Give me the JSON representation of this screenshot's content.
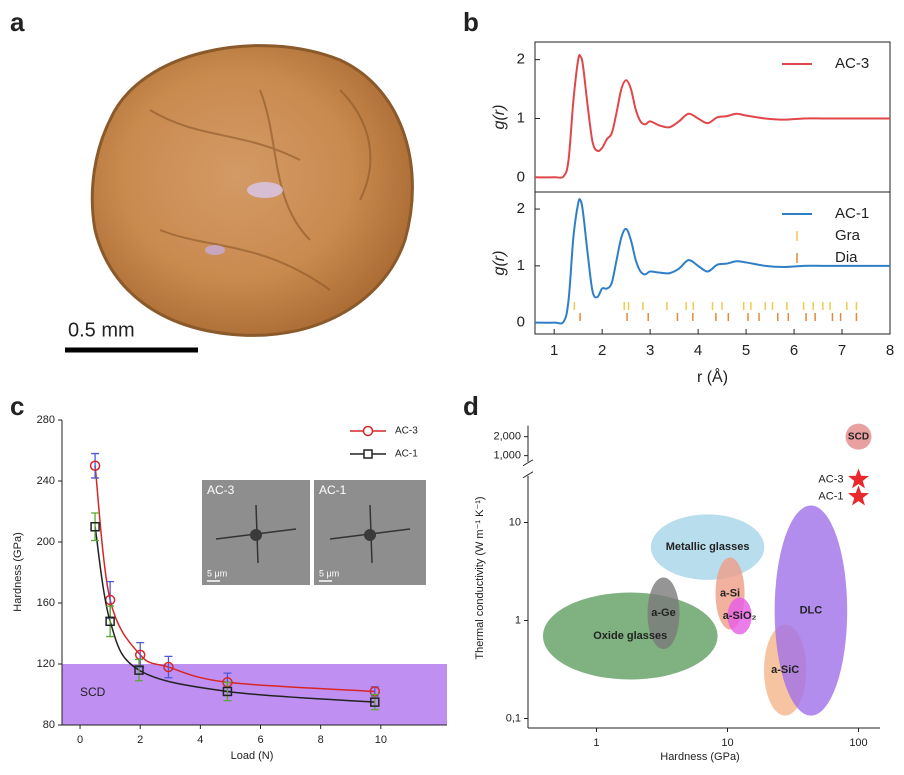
{
  "panel_labels": [
    "a",
    "b",
    "c",
    "d"
  ],
  "photo": {
    "scale_bar": "0.5 mm"
  },
  "chart_data": [
    {
      "type": "line",
      "ylabel": "g(r)",
      "xlim": [
        0.6,
        8
      ],
      "ylim": [
        -0.25,
        2.3
      ],
      "yticks": [
        0,
        1,
        2
      ],
      "x": [
        0.6,
        1.0,
        1.2,
        1.3,
        1.4,
        1.5,
        1.55,
        1.6,
        1.7,
        1.8,
        1.9,
        2.0,
        2.1,
        2.2,
        2.3,
        2.4,
        2.5,
        2.6,
        2.7,
        2.8,
        2.9,
        3.0,
        3.2,
        3.4,
        3.6,
        3.8,
        4.0,
        4.2,
        4.4,
        4.6,
        4.8,
        5.0,
        5.4,
        5.8,
        6.2,
        6.6,
        7.0,
        7.5,
        8.0
      ],
      "series": [
        {
          "name": "AC-3",
          "color": "#e0464a",
          "values": [
            0,
            0,
            0.02,
            0.3,
            1.3,
            2.0,
            2.05,
            1.9,
            1.2,
            0.6,
            0.45,
            0.5,
            0.65,
            0.75,
            1.1,
            1.5,
            1.65,
            1.5,
            1.15,
            0.95,
            0.9,
            0.95,
            0.88,
            0.85,
            0.95,
            1.08,
            1.0,
            0.92,
            1.02,
            1.04,
            1.08,
            1.05,
            1.0,
            0.98,
            1.0,
            1.0,
            1.0,
            1.0,
            1.0
          ]
        }
      ]
    },
    {
      "type": "line",
      "ylabel": "g(r)",
      "xlabel": "r (Å)",
      "xlim": [
        0.6,
        8
      ],
      "ylim": [
        -0.2,
        2.3
      ],
      "yticks": [
        0,
        1,
        2
      ],
      "xticks": [
        1,
        2,
        3,
        4,
        5,
        6,
        7,
        8
      ],
      "x": [
        0.6,
        1.0,
        1.2,
        1.3,
        1.4,
        1.5,
        1.55,
        1.6,
        1.7,
        1.8,
        1.9,
        2.0,
        2.1,
        2.2,
        2.3,
        2.4,
        2.5,
        2.6,
        2.7,
        2.8,
        2.9,
        3.0,
        3.2,
        3.4,
        3.6,
        3.8,
        4.0,
        4.2,
        4.4,
        4.6,
        4.8,
        5.0,
        5.4,
        5.8,
        6.2,
        6.6,
        7.0,
        7.5,
        8.0
      ],
      "series": [
        {
          "name": "AC-1",
          "color": "#2f7fc6",
          "values": [
            0,
            0,
            0.02,
            0.4,
            1.5,
            2.1,
            2.15,
            1.95,
            1.2,
            0.55,
            0.45,
            0.6,
            0.6,
            0.7,
            1.1,
            1.5,
            1.65,
            1.45,
            1.1,
            0.9,
            0.85,
            0.9,
            0.88,
            0.87,
            0.95,
            1.1,
            1.0,
            0.9,
            1.02,
            1.04,
            1.08,
            1.06,
            1.0,
            0.98,
            1.0,
            1.0,
            1.0,
            1.0,
            1.0
          ]
        }
      ],
      "markers": [
        {
          "name": "Gra",
          "color": "#f2c94c",
          "x": [
            1.42,
            2.46,
            2.55,
            2.85,
            3.35,
            3.75,
            3.9,
            4.3,
            4.5,
            4.95,
            5.1,
            5.4,
            5.55,
            5.85,
            6.2,
            6.4,
            6.6,
            6.75,
            7.1,
            7.3
          ]
        },
        {
          "name": "Dia",
          "color": "#e08a3c",
          "x": [
            1.54,
            2.52,
            2.96,
            3.57,
            3.89,
            4.37,
            4.63,
            5.04,
            5.27,
            5.66,
            5.88,
            6.25,
            6.44,
            6.8,
            6.97,
            7.3
          ]
        }
      ]
    },
    {
      "type": "errorbar",
      "xlabel": "Load (N)",
      "ylabel": "Hardness (GPa)",
      "xlim": [
        -0.6,
        12.2
      ],
      "ylim": [
        80,
        280
      ],
      "xticks": [
        0,
        2,
        4,
        6,
        8,
        10
      ],
      "yticks": [
        80,
        120,
        160,
        200,
        240,
        280
      ],
      "band": {
        "label": "SCD",
        "range": [
          80,
          120
        ],
        "color": "#b57bf0"
      },
      "series": [
        {
          "name": "AC-3",
          "color": "#d62728",
          "error_color": "#4b5bd6",
          "marker": "circle",
          "x": [
            0.5,
            1,
            2,
            2.94,
            4.9,
            9.8
          ],
          "values": [
            250,
            162,
            126,
            118,
            108,
            102
          ],
          "errors": [
            8,
            12,
            8,
            7,
            6,
            3
          ]
        },
        {
          "name": "AC-1",
          "color": "#222222",
          "error_color": "#5aa832",
          "marker": "square",
          "x": [
            0.5,
            1,
            1.96,
            4.9,
            9.8
          ],
          "values": [
            210,
            148,
            116,
            102,
            95
          ],
          "errors": [
            9,
            10,
            7,
            6,
            5
          ]
        }
      ],
      "insets": [
        {
          "label": "AC-3",
          "scale": "5 μm"
        },
        {
          "label": "AC-1",
          "scale": "5 μm"
        }
      ]
    },
    {
      "type": "region",
      "xlabel": "Hardness (GPa)",
      "ylabel": "Thermal conductivity (W m⁻¹ K⁻¹)",
      "xscale": "log",
      "yscale": "log",
      "xlim": [
        0.3,
        132
      ],
      "ylim": [
        0.08,
        3000
      ],
      "ybreak": [
        30,
        800
      ],
      "xticks": [
        1,
        10,
        100
      ],
      "yticks": [
        {
          "value": 0.1,
          "label": "0,1"
        },
        1,
        10,
        {
          "value": 1000,
          "label": "1,000"
        },
        {
          "value": 2000,
          "label": "2,000"
        }
      ],
      "regions": [
        {
          "name": "a-SiC",
          "color": "#f5b58a",
          "x": [
            19,
            40
          ],
          "y": [
            0.107,
            0.91
          ]
        },
        {
          "name": "Oxide glasses",
          "color": "#5f9e62",
          "x": [
            0.39,
            8.4
          ],
          "y": [
            0.25,
            1.93
          ]
        },
        {
          "name": "Metallic glasses",
          "color": "#a6d6ea",
          "x": [
            2.6,
            19.1
          ],
          "y": [
            2.6,
            12.1
          ]
        },
        {
          "name": "a-Ge",
          "color": "#7a7a7a",
          "x": [
            2.45,
            4.3
          ],
          "y": [
            0.51,
            2.75
          ]
        },
        {
          "name": "a-Si",
          "color": "#ef9c86",
          "x": [
            8.1,
            13.5
          ],
          "y": [
            0.81,
            4.4
          ]
        },
        {
          "name": "a-SiO₂",
          "color": "#e65ce6",
          "x": [
            10,
            15.3
          ],
          "y": [
            0.72,
            1.72
          ]
        },
        {
          "name": "DLC",
          "color": "#a070e8",
          "x": [
            22.9,
            82
          ],
          "y": [
            0.107,
            14.9
          ]
        }
      ],
      "points": [
        {
          "name": "SCD",
          "x": 100,
          "y": 2000,
          "color": "#e8a0a0",
          "marker": "circle"
        },
        {
          "name": "AC-3",
          "x": 100,
          "y": 27.5,
          "color": "#e8282c",
          "marker": "star"
        },
        {
          "name": "AC-1",
          "x": 100,
          "y": 18.4,
          "color": "#e8282c",
          "marker": "star"
        }
      ]
    }
  ]
}
